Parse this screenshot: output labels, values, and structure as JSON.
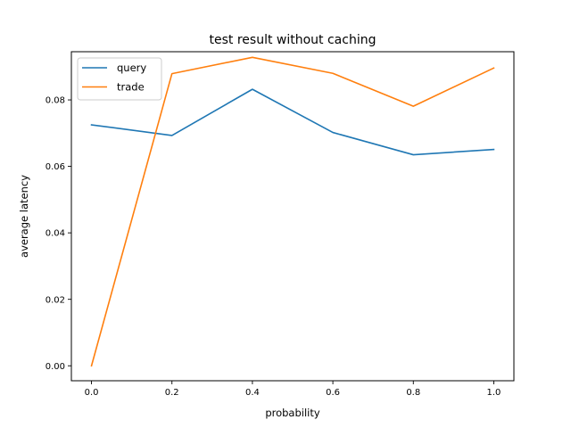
{
  "chart_data": {
    "type": "line",
    "title": "test result without caching",
    "xlabel": "probability",
    "ylabel": "average latency",
    "x": [
      0.0,
      0.2,
      0.4,
      0.6,
      0.8,
      1.0
    ],
    "xlim": [
      -0.05,
      1.05
    ],
    "ylim": [
      -0.0045,
      0.0945
    ],
    "xticks": [
      "0.0",
      "0.2",
      "0.4",
      "0.6",
      "0.8",
      "1.0"
    ],
    "yticks": [
      "0.00",
      "0.02",
      "0.04",
      "0.06",
      "0.08"
    ],
    "grid": false,
    "legend_position": "top-left",
    "series": [
      {
        "name": "query",
        "color": "#1f77b4",
        "values": [
          0.0725,
          0.0693,
          0.0832,
          0.0702,
          0.0635,
          0.0651
        ]
      },
      {
        "name": "trade",
        "color": "#ff7f0e",
        "values": [
          0.0,
          0.0879,
          0.0928,
          0.088,
          0.0781,
          0.0896
        ]
      }
    ]
  }
}
